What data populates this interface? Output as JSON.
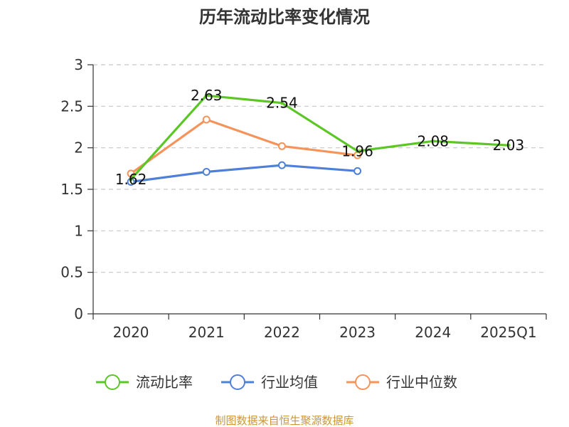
{
  "chart_data": {
    "type": "line",
    "title": "历年流动比率变化情况",
    "categories": [
      "2020",
      "2021",
      "2022",
      "2023",
      "2024",
      "2025Q1"
    ],
    "ylim": [
      0,
      3
    ],
    "yticks": [
      "0",
      "0.5",
      "1",
      "1.5",
      "2",
      "2.5",
      "3"
    ],
    "grid": true,
    "legend_position": "bottom",
    "series": [
      {
        "name": "流动比率",
        "color": "#5cc626",
        "values": [
          1.62,
          2.63,
          2.54,
          1.96,
          2.08,
          2.03
        ],
        "labels": [
          "1.62",
          "2.63",
          "2.54",
          "1.96",
          "2.08",
          "2.03"
        ]
      },
      {
        "name": "行业均值",
        "color": "#4f80d8",
        "values": [
          1.59,
          1.71,
          1.79,
          1.72,
          null,
          null
        ]
      },
      {
        "name": "行业中位数",
        "color": "#f5935a",
        "values": [
          1.69,
          2.34,
          2.02,
          1.91,
          null,
          null
        ]
      }
    ]
  },
  "footer": "制图数据来自恒生聚源数据库"
}
